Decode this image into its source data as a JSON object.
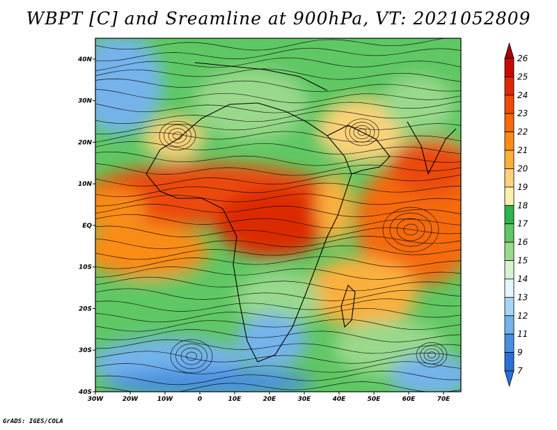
{
  "title": "WBPT [C] and Sreamline at 900hPa, VT: 2021052809",
  "credit": "GrADS: IGES/COLA",
  "map": {
    "lon_range": [
      -30,
      75
    ],
    "lat_range": [
      -40,
      45
    ],
    "lon_ticks": [
      {
        "value": -30,
        "label": "30W"
      },
      {
        "value": -20,
        "label": "20W"
      },
      {
        "value": -10,
        "label": "10W"
      },
      {
        "value": 0,
        "label": "0"
      },
      {
        "value": 10,
        "label": "10E"
      },
      {
        "value": 20,
        "label": "20E"
      },
      {
        "value": 30,
        "label": "30E"
      },
      {
        "value": 40,
        "label": "40E"
      },
      {
        "value": 50,
        "label": "50E"
      },
      {
        "value": 60,
        "label": "60E"
      },
      {
        "value": 70,
        "label": "70E"
      }
    ],
    "lat_ticks": [
      {
        "value": 40,
        "label": "40N"
      },
      {
        "value": 30,
        "label": "30N"
      },
      {
        "value": 20,
        "label": "20N"
      },
      {
        "value": 10,
        "label": "10N"
      },
      {
        "value": 0,
        "label": "EQ"
      },
      {
        "value": -10,
        "label": "10S"
      },
      {
        "value": -20,
        "label": "20S"
      },
      {
        "value": -30,
        "label": "30S"
      },
      {
        "value": -40,
        "label": "40S"
      }
    ]
  },
  "colorbar": {
    "levels": [
      {
        "label": "26",
        "color": "#a50000"
      },
      {
        "label": "25",
        "color": "#c80a00"
      },
      {
        "label": "24",
        "color": "#dc2a00"
      },
      {
        "label": "23",
        "color": "#ec4a08"
      },
      {
        "label": "22",
        "color": "#f56a0a"
      },
      {
        "label": "21",
        "color": "#fa8c14"
      },
      {
        "label": "20",
        "color": "#fbb03c"
      },
      {
        "label": "19",
        "color": "#fdd27a"
      },
      {
        "label": "18",
        "color": "#fef0ac"
      },
      {
        "label": "17",
        "color": "#2fb34a"
      },
      {
        "label": "16",
        "color": "#5fc763"
      },
      {
        "label": "15",
        "color": "#9ad98c"
      },
      {
        "label": "14",
        "color": "#d8f3d3"
      },
      {
        "label": "13",
        "color": "#e4f6fc"
      },
      {
        "label": "12",
        "color": "#a8d5f5"
      },
      {
        "label": "11",
        "color": "#74b3eb"
      },
      {
        "label": "9",
        "color": "#4a8fe0"
      },
      {
        "label": "7",
        "color": "#2a6fd8"
      }
    ],
    "bottom_color": "#2a6fd8"
  }
}
